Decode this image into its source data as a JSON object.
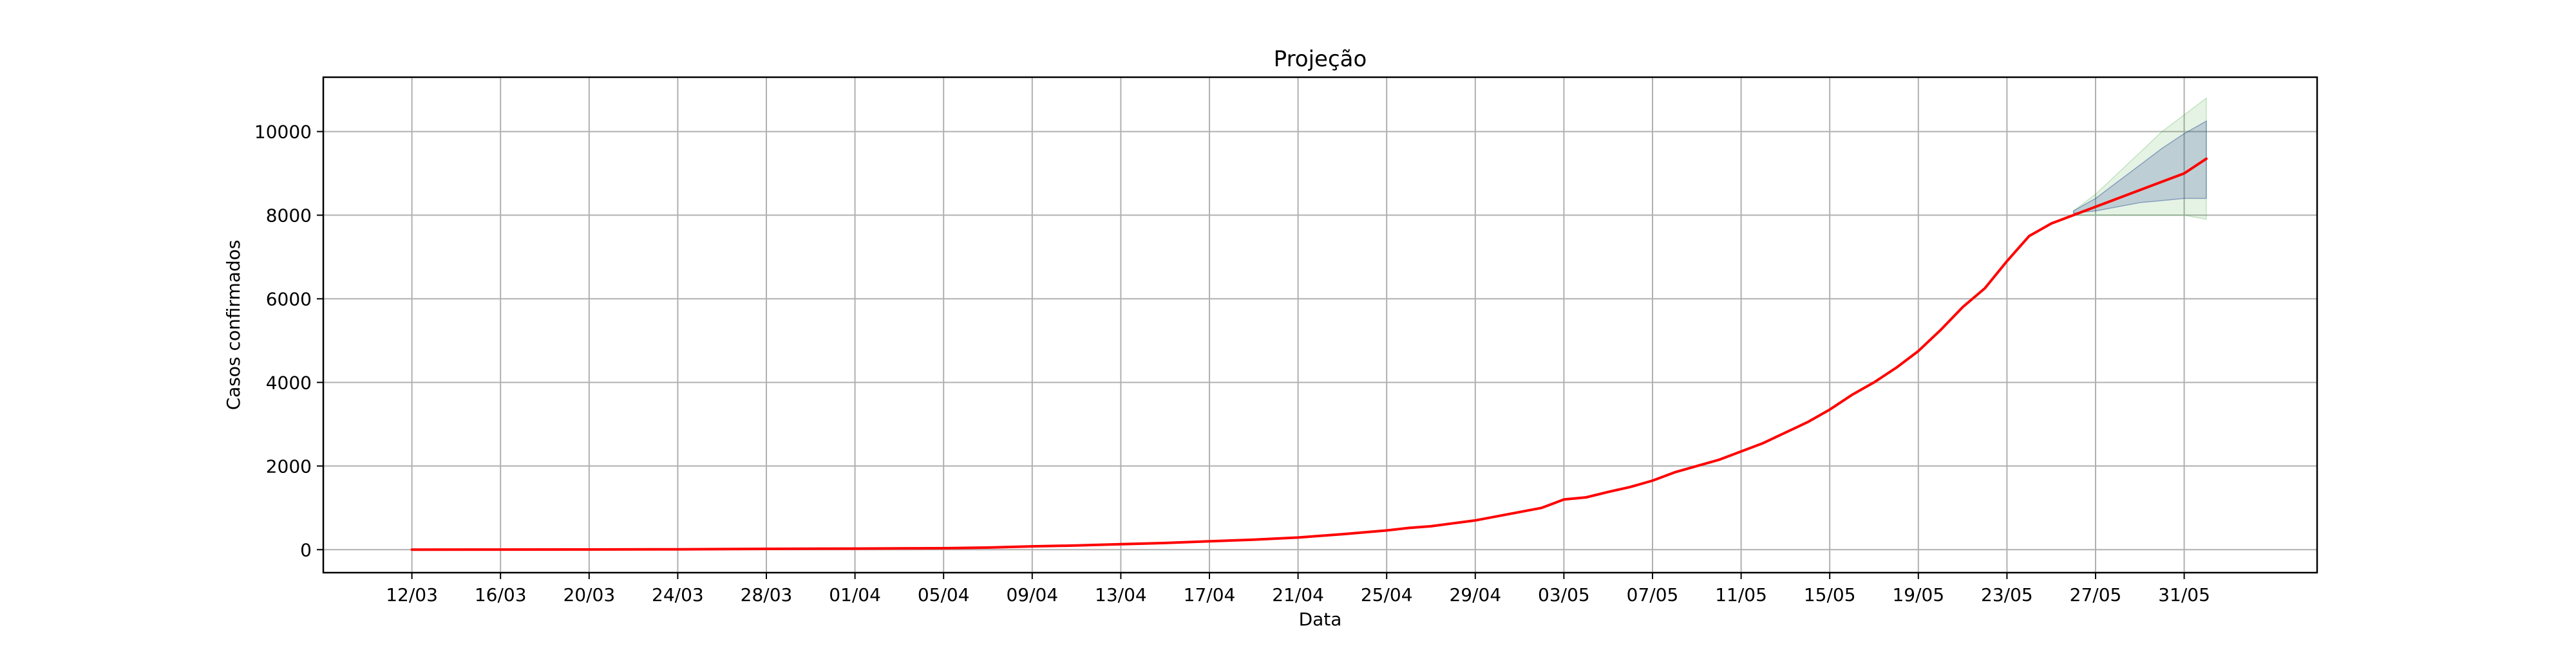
{
  "chart_data": {
    "type": "line",
    "title": "Projeção",
    "xlabel": "Data",
    "ylabel": "Casos confirmados",
    "grid": true,
    "ylim": [
      -550,
      11300
    ],
    "yticks": [
      0,
      2000,
      4000,
      6000,
      8000,
      10000
    ],
    "x_range": [
      "2020-03-08",
      "2020-06-06"
    ],
    "xticks": [
      "12/03",
      "16/03",
      "20/03",
      "24/03",
      "28/03",
      "01/04",
      "05/04",
      "09/04",
      "13/04",
      "17/04",
      "21/04",
      "25/04",
      "29/04",
      "03/05",
      "07/05",
      "11/05",
      "15/05",
      "19/05",
      "23/05",
      "27/05",
      "31/05"
    ],
    "xtick_dates": [
      "2020-03-12",
      "2020-03-16",
      "2020-03-20",
      "2020-03-24",
      "2020-03-28",
      "2020-04-01",
      "2020-04-05",
      "2020-04-09",
      "2020-04-13",
      "2020-04-17",
      "2020-04-21",
      "2020-04-25",
      "2020-04-29",
      "2020-05-03",
      "2020-05-07",
      "2020-05-11",
      "2020-05-15",
      "2020-05-19",
      "2020-05-23",
      "2020-05-27",
      "2020-05-31"
    ],
    "series": [
      {
        "color": "#ff0000",
        "x": [
          "2020-03-12",
          "2020-03-16",
          "2020-03-20",
          "2020-03-24",
          "2020-03-28",
          "2020-04-01",
          "2020-04-05",
          "2020-04-07",
          "2020-04-09",
          "2020-04-11",
          "2020-04-13",
          "2020-04-15",
          "2020-04-17",
          "2020-04-19",
          "2020-04-21",
          "2020-04-23",
          "2020-04-25",
          "2020-04-26",
          "2020-04-27",
          "2020-04-28",
          "2020-04-29",
          "2020-04-30",
          "2020-05-01",
          "2020-05-02",
          "2020-05-03",
          "2020-05-04",
          "2020-05-05",
          "2020-05-06",
          "2020-05-07",
          "2020-05-08",
          "2020-05-09",
          "2020-05-10",
          "2020-05-11",
          "2020-05-12",
          "2020-05-13",
          "2020-05-14",
          "2020-05-15",
          "2020-05-16",
          "2020-05-17",
          "2020-05-18",
          "2020-05-19",
          "2020-05-20",
          "2020-05-21",
          "2020-05-22",
          "2020-05-23",
          "2020-05-24",
          "2020-05-25",
          "2020-05-26",
          "2020-05-27",
          "2020-05-28",
          "2020-05-29",
          "2020-05-30",
          "2020-05-31",
          "2020-06-01"
        ],
        "y": [
          1,
          2,
          4,
          8,
          20,
          25,
          35,
          50,
          80,
          100,
          130,
          160,
          200,
          240,
          290,
          370,
          460,
          520,
          560,
          630,
          700,
          800,
          900,
          1000,
          1200,
          1250,
          1380,
          1500,
          1650,
          1850,
          2000,
          2150,
          2350,
          2550,
          2800,
          3050,
          3350,
          3700,
          4000,
          4350,
          4750,
          5250,
          5800,
          6250,
          6900,
          7500,
          7800,
          8000,
          8200,
          8400,
          8600,
          8800,
          9000,
          9350
        ]
      }
    ],
    "bands": [
      {
        "color": "#2ca02c",
        "opacity": 0.12,
        "x": [
          "2020-05-26",
          "2020-05-27",
          "2020-05-28",
          "2020-05-29",
          "2020-05-30",
          "2020-05-31",
          "2020-06-01"
        ],
        "lower": [
          8000,
          8000,
          8000,
          8000,
          8000,
          8000,
          7900
        ],
        "upper": [
          8100,
          8500,
          9000,
          9500,
          10000,
          10400,
          10800
        ]
      },
      {
        "color": "#1f3f8f",
        "opacity": 0.2,
        "x": [
          "2020-05-26",
          "2020-05-27",
          "2020-05-28",
          "2020-05-29",
          "2020-05-30",
          "2020-05-31",
          "2020-06-01"
        ],
        "lower": [
          8050,
          8100,
          8200,
          8300,
          8350,
          8400,
          8400
        ],
        "upper": [
          8100,
          8400,
          8800,
          9200,
          9600,
          9950,
          10250
        ]
      }
    ]
  }
}
